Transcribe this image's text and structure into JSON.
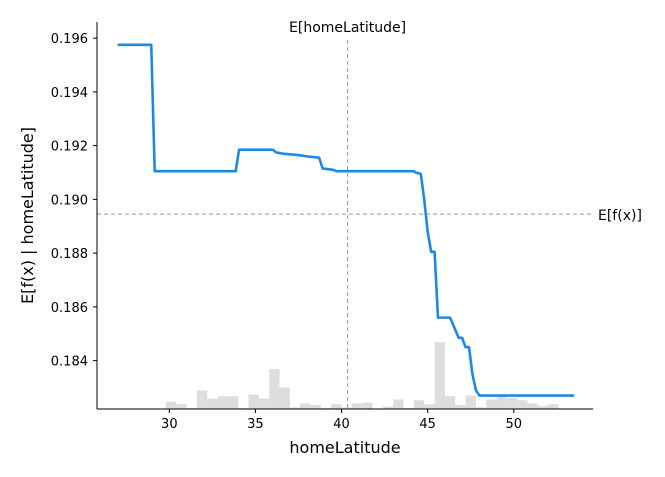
{
  "chart_data": {
    "type": "line",
    "title": "",
    "xlabel": "homeLatitude",
    "ylabel": "E[f(x) | homeLatitude]",
    "xlim": [
      25.8,
      54.6
    ],
    "ylim": [
      0.1822,
      0.1966
    ],
    "x_ticks": [
      30,
      35,
      40,
      45,
      50
    ],
    "y_ticks": [
      0.184,
      0.186,
      0.188,
      0.19,
      0.192,
      0.194,
      0.196
    ],
    "x_tick_labels": [
      "30",
      "35",
      "40",
      "45",
      "50"
    ],
    "y_tick_labels": [
      "0.184",
      "0.186",
      "0.188",
      "0.190",
      "0.192",
      "0.194",
      "0.196"
    ],
    "line_color": "#1E88E5",
    "reference_color": "#999999",
    "histogram_color": "#dddddd",
    "grid": false,
    "reference_lines": {
      "vertical": {
        "x": 40.35,
        "label": "E[homeLatitude]"
      },
      "horizontal": {
        "y": 0.18945,
        "label": "E[f(x)]"
      }
    },
    "series": [
      {
        "x": [
          27.0,
          28.95,
          29.15,
          31.0,
          33.0,
          33.85,
          34.05,
          36.0,
          36.2,
          36.6,
          37.5,
          38.0,
          38.7,
          38.9,
          39.5,
          39.7,
          40.3,
          42.0,
          43.0,
          44.2,
          44.3,
          44.6,
          44.8,
          45.0,
          45.2,
          45.4,
          45.6,
          45.8,
          46.0,
          46.3,
          46.8,
          47.0,
          47.2,
          47.4,
          47.6,
          47.8,
          48.0,
          48.2,
          48.4,
          48.6,
          49.0,
          50.0,
          51.0,
          52.0,
          53.5
        ],
        "y": [
          0.19575,
          0.19575,
          0.19105,
          0.19105,
          0.19105,
          0.19105,
          0.19185,
          0.19185,
          0.19175,
          0.1917,
          0.19165,
          0.1916,
          0.19155,
          0.19115,
          0.1911,
          0.19105,
          0.19105,
          0.19105,
          0.19105,
          0.19105,
          0.191,
          0.19095,
          0.19,
          0.1888,
          0.18805,
          0.18805,
          0.1856,
          0.1856,
          0.1856,
          0.1856,
          0.18485,
          0.18485,
          0.1845,
          0.1845,
          0.1835,
          0.1829,
          0.1827,
          0.1827,
          0.1827,
          0.1827,
          0.1827,
          0.1827,
          0.1827,
          0.1827,
          0.1827
        ]
      }
    ],
    "histogram": {
      "bin_edges": [
        25.6,
        26.2,
        26.8,
        27.4,
        28.0,
        28.6,
        29.2,
        29.8,
        30.4,
        31.0,
        31.6,
        32.2,
        32.8,
        33.4,
        34.0,
        34.6,
        35.2,
        35.8,
        36.4,
        37.0,
        37.6,
        38.2,
        38.8,
        39.4,
        40.0,
        40.6,
        41.2,
        41.8,
        42.4,
        43.0,
        43.6,
        44.2,
        44.8,
        45.4,
        46.0,
        46.6,
        47.2,
        47.8,
        48.4,
        49.0,
        49.6,
        50.2,
        50.8,
        51.4,
        52.0,
        52.6
      ],
      "heights": [
        0,
        0,
        0,
        0,
        0.2,
        0,
        0,
        9,
        6,
        1,
        23,
        13,
        16,
        16,
        1,
        18,
        13,
        50,
        27,
        2,
        7,
        5,
        1,
        6,
        2,
        7,
        8,
        0,
        3,
        12,
        1,
        11,
        6,
        84,
        16,
        5,
        17,
        2,
        12,
        18,
        14,
        11,
        7,
        4,
        6,
        0.6
      ]
    }
  }
}
